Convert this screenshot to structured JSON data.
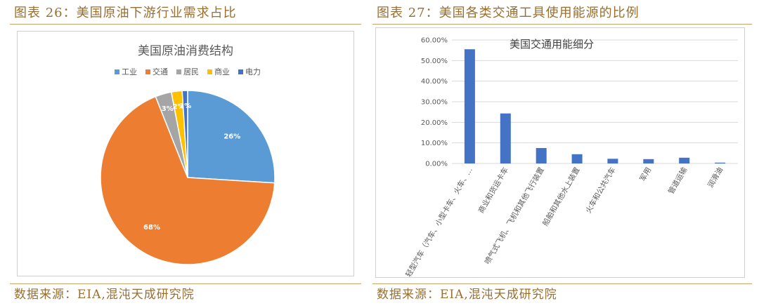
{
  "left_figure": {
    "caption": "图表 26：美国原油下游行业需求占比",
    "source": "数据来源：EIA,混沌天成研究院"
  },
  "right_figure": {
    "caption": "图表 27：美国各类交通工具使用能源的比例",
    "source": "数据来源：EIA,混沌天成研究院"
  },
  "chart_data": [
    {
      "type": "pie",
      "title": "美国原油消费结构",
      "legend_position": "top",
      "categories": [
        "工业",
        "交通",
        "居民",
        "商业",
        "电力"
      ],
      "values": [
        26,
        68,
        3,
        2,
        1
      ],
      "value_labels": [
        "26%",
        "68%",
        "3%",
        "2%",
        "1%"
      ],
      "colors": [
        "#5b9bd5",
        "#ed7d31",
        "#a5a5a5",
        "#ffc000",
        "#4472c4"
      ]
    },
    {
      "type": "bar",
      "title": "美国交通用能细分",
      "categories": [
        "轻型汽车（汽车、小型卡车、火车、…",
        "商业和货运卡车",
        "喷气式飞机、飞机和其他飞行装置",
        "船舶和其他水上装置",
        "火车和公共汽车",
        "军用",
        "管道运输",
        "润滑油"
      ],
      "values": [
        55.5,
        24.3,
        7.5,
        4.5,
        2.3,
        2.1,
        2.8,
        0.4
      ],
      "yticks": [
        "0.00%",
        "10.00%",
        "20.00%",
        "30.00%",
        "40.00%",
        "50.00%",
        "60.00%"
      ],
      "ylim": [
        0,
        60
      ],
      "grid": true,
      "color": "#4472c4"
    }
  ]
}
